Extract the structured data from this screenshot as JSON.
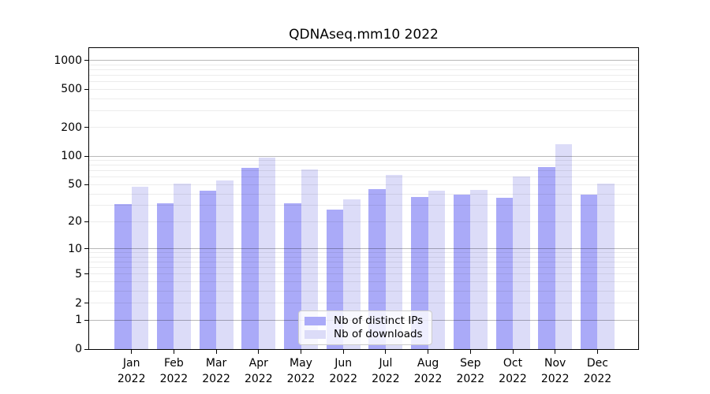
{
  "title": "QDNAseq.mm10 2022",
  "chart_data": {
    "type": "bar",
    "title": "QDNAseq.mm10 2022",
    "categories": [
      "Jan 2022",
      "Feb 2022",
      "Mar 2022",
      "Apr 2022",
      "May 2022",
      "Jun 2022",
      "Jul 2022",
      "Aug 2022",
      "Sep 2022",
      "Oct 2022",
      "Nov 2022",
      "Dec 2022"
    ],
    "x_tick_months": [
      "Jan",
      "Feb",
      "Mar",
      "Apr",
      "May",
      "Jun",
      "Jul",
      "Aug",
      "Sep",
      "Oct",
      "Nov",
      "Dec"
    ],
    "x_tick_year": "2022",
    "series": [
      {
        "name": "Nb of distinct IPs",
        "color": "#aaaaf8",
        "values": [
          31,
          32,
          43,
          75,
          32,
          27,
          45,
          37,
          39,
          36,
          77,
          39
        ]
      },
      {
        "name": "Nb of downloads",
        "color": "#dcdcf8",
        "values": [
          48,
          51,
          55,
          96,
          72,
          35,
          63,
          43,
          44,
          61,
          133,
          51
        ]
      }
    ],
    "yscale": "log1p",
    "yticks": [
      0,
      1,
      2,
      5,
      10,
      20,
      50,
      100,
      200,
      500,
      1000
    ],
    "major_grid_at": [
      1,
      10,
      100,
      1000
    ],
    "ylim": [
      0,
      1340
    ],
    "xlabel": "",
    "ylabel": "",
    "grid": true,
    "legend_position": "lower center",
    "colors": {
      "background": "#ffffff",
      "axis": "#000000",
      "major_grid": "#b9b9b9",
      "minor_grid": "#ececec"
    }
  }
}
